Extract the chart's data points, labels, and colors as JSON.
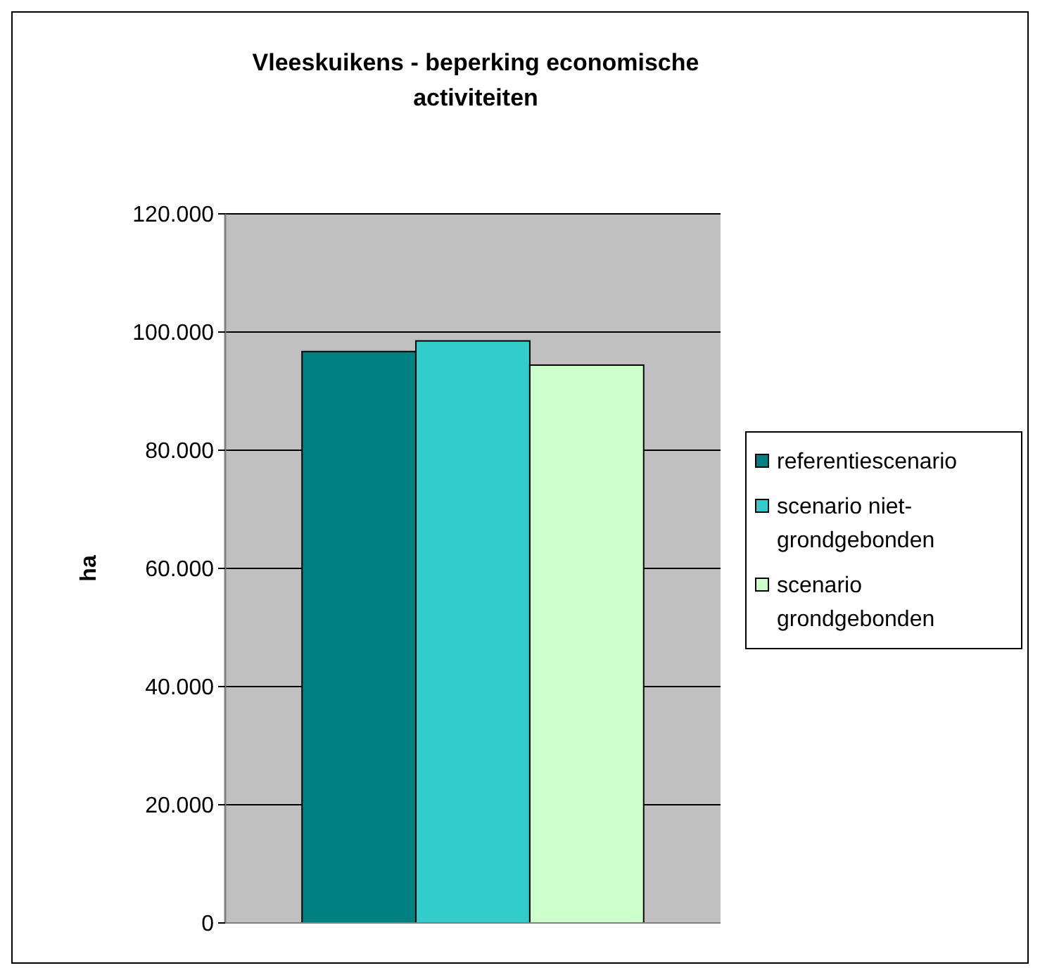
{
  "chart_data": {
    "type": "bar",
    "title": "Vleeskuikens - beperking economische activiteiten",
    "ylabel": "ha",
    "categories": [
      null
    ],
    "series": [
      {
        "name": "referentiescenario",
        "color": "#008080",
        "values": [
          96700
        ]
      },
      {
        "name": "scenario niet-grondgebonden",
        "color": "#33cccc",
        "values": [
          98500
        ]
      },
      {
        "name": "scenario grondgebonden",
        "color": "#ccffcc",
        "values": [
          94400
        ]
      }
    ],
    "ylim": [
      0,
      120000
    ],
    "yticks": [
      {
        "value": 0,
        "label": "0"
      },
      {
        "value": 20000,
        "label": "20.000"
      },
      {
        "value": 40000,
        "label": "40.000"
      },
      {
        "value": 60000,
        "label": "60.000"
      },
      {
        "value": 80000,
        "label": "80.000"
      },
      {
        "value": 100000,
        "label": "100.000"
      },
      {
        "value": 120000,
        "label": "120.000"
      }
    ],
    "grid": "y",
    "legend": "right"
  }
}
